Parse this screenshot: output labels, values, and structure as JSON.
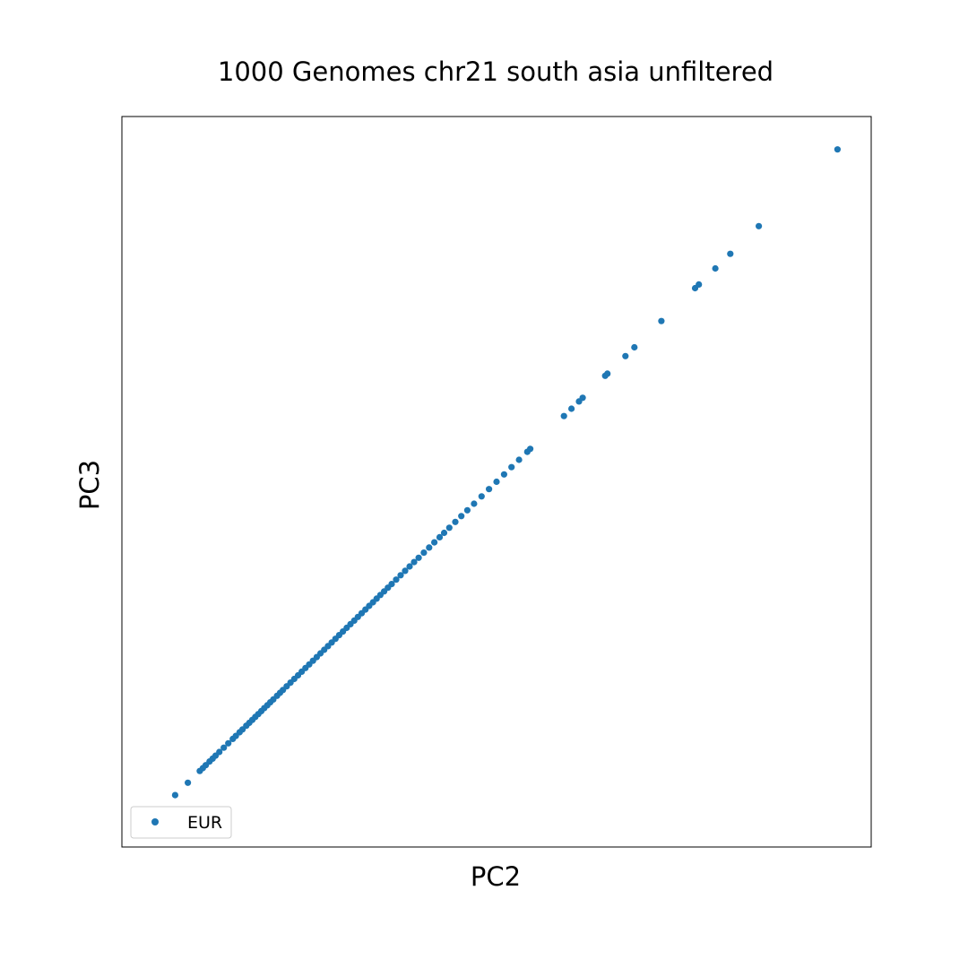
{
  "chart_data": {
    "type": "scatter",
    "title": "1000 Genomes chr21 south asia unfiltered",
    "xlabel": "PC2",
    "ylabel": "PC3",
    "xlim": [
      0,
      1
    ],
    "ylim": [
      0,
      1
    ],
    "grid": false,
    "legend_position": "lower-left",
    "series": [
      {
        "name": "EUR",
        "color": "#1f77b4",
        "points": [
          [
            0.047,
            0.045
          ],
          [
            0.071,
            0.071
          ],
          [
            0.088,
            0.088
          ],
          [
            0.104,
            0.104
          ],
          [
            0.108,
            0.108
          ],
          [
            0.112,
            0.112
          ],
          [
            0.117,
            0.117
          ],
          [
            0.121,
            0.121
          ],
          [
            0.125,
            0.125
          ],
          [
            0.13,
            0.13
          ],
          [
            0.136,
            0.136
          ],
          [
            0.142,
            0.142
          ],
          [
            0.148,
            0.148
          ],
          [
            0.152,
            0.152
          ],
          [
            0.157,
            0.157
          ],
          [
            0.161,
            0.161
          ],
          [
            0.166,
            0.166
          ],
          [
            0.17,
            0.17
          ],
          [
            0.174,
            0.174
          ],
          [
            0.178,
            0.178
          ],
          [
            0.182,
            0.182
          ],
          [
            0.186,
            0.186
          ],
          [
            0.19,
            0.19
          ],
          [
            0.194,
            0.194
          ],
          [
            0.198,
            0.198
          ],
          [
            0.202,
            0.202
          ],
          [
            0.207,
            0.207
          ],
          [
            0.211,
            0.211
          ],
          [
            0.215,
            0.215
          ],
          [
            0.22,
            0.22
          ],
          [
            0.225,
            0.225
          ],
          [
            0.23,
            0.23
          ],
          [
            0.235,
            0.235
          ],
          [
            0.24,
            0.24
          ],
          [
            0.245,
            0.245
          ],
          [
            0.25,
            0.25
          ],
          [
            0.255,
            0.255
          ],
          [
            0.26,
            0.26
          ],
          [
            0.265,
            0.265
          ],
          [
            0.27,
            0.27
          ],
          [
            0.275,
            0.275
          ],
          [
            0.28,
            0.28
          ],
          [
            0.285,
            0.285
          ],
          [
            0.29,
            0.29
          ],
          [
            0.295,
            0.295
          ],
          [
            0.3,
            0.3
          ],
          [
            0.305,
            0.305
          ],
          [
            0.31,
            0.31
          ],
          [
            0.315,
            0.315
          ],
          [
            0.32,
            0.32
          ],
          [
            0.325,
            0.325
          ],
          [
            0.33,
            0.33
          ],
          [
            0.335,
            0.335
          ],
          [
            0.34,
            0.34
          ],
          [
            0.345,
            0.345
          ],
          [
            0.35,
            0.35
          ],
          [
            0.355,
            0.355
          ],
          [
            0.36,
            0.36
          ],
          [
            0.366,
            0.366
          ],
          [
            0.372,
            0.372
          ],
          [
            0.378,
            0.378
          ],
          [
            0.384,
            0.384
          ],
          [
            0.39,
            0.39
          ],
          [
            0.396,
            0.396
          ],
          [
            0.403,
            0.403
          ],
          [
            0.41,
            0.41
          ],
          [
            0.417,
            0.417
          ],
          [
            0.424,
            0.424
          ],
          [
            0.43,
            0.43
          ],
          [
            0.437,
            0.437
          ],
          [
            0.445,
            0.445
          ],
          [
            0.453,
            0.453
          ],
          [
            0.461,
            0.461
          ],
          [
            0.47,
            0.47
          ],
          [
            0.48,
            0.48
          ],
          [
            0.49,
            0.49
          ],
          [
            0.5,
            0.5
          ],
          [
            0.51,
            0.51
          ],
          [
            0.52,
            0.52
          ],
          [
            0.53,
            0.53
          ],
          [
            0.541,
            0.541
          ],
          [
            0.545,
            0.545
          ],
          [
            0.59,
            0.59
          ],
          [
            0.6,
            0.6
          ],
          [
            0.61,
            0.61
          ],
          [
            0.615,
            0.615
          ],
          [
            0.645,
            0.645
          ],
          [
            0.648,
            0.648
          ],
          [
            0.672,
            0.672
          ],
          [
            0.684,
            0.684
          ],
          [
            0.72,
            0.72
          ],
          [
            0.765,
            0.765
          ],
          [
            0.77,
            0.77
          ],
          [
            0.792,
            0.792
          ],
          [
            0.812,
            0.812
          ],
          [
            0.85,
            0.85
          ],
          [
            0.955,
            0.955
          ]
        ]
      }
    ]
  }
}
